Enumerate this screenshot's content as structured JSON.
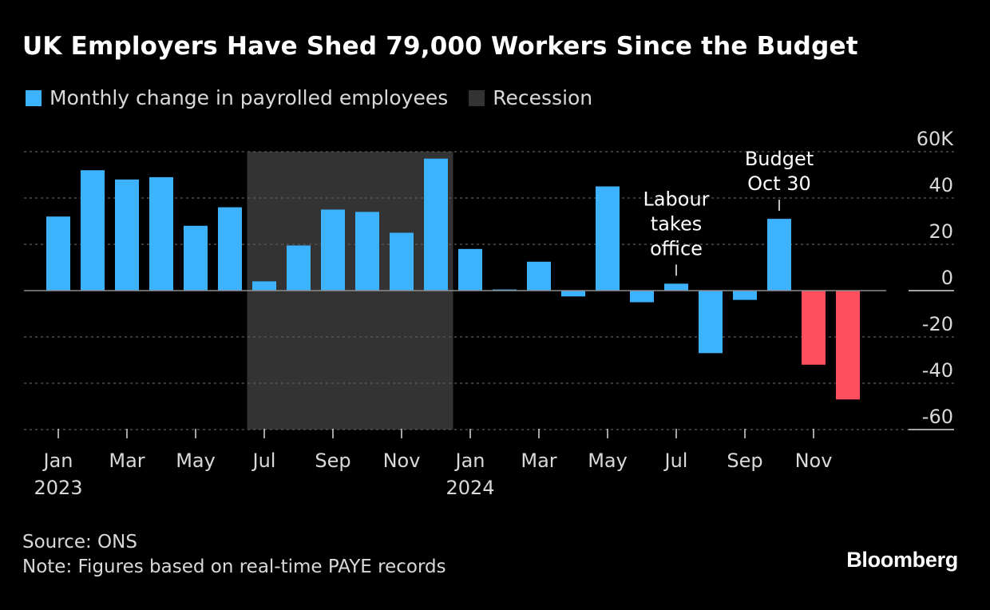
{
  "title": "UK Employers Have Shed 79,000 Workers Since the Budget",
  "legend": [
    {
      "label": "Monthly change in payrolled employees",
      "color": "#3db3ff"
    },
    {
      "label": "Recession",
      "color": "#333333"
    }
  ],
  "footer": {
    "source": "Source: ONS",
    "note": "Note: Figures based on real-time PAYE records"
  },
  "brand": "Bloomberg",
  "colors": {
    "positive": "#3db3ff",
    "highlight_negative": "#ff4f5e",
    "recession": "#333333",
    "grid": "#5a5a5a",
    "text": "#d9d9d9"
  },
  "chart_data": {
    "type": "bar",
    "title": "UK Employers Have Shed 79,000 Workers Since the Budget",
    "xlabel": "",
    "ylabel": "",
    "ylim": [
      -60,
      60
    ],
    "y_ticks": [
      60,
      40,
      20,
      0,
      -20,
      -40,
      -60
    ],
    "y_tick_labels": [
      "60K",
      "40",
      "20",
      "0",
      "-20",
      "-40",
      "-60"
    ],
    "grid": true,
    "categories": [
      "2023-01",
      "2023-02",
      "2023-03",
      "2023-04",
      "2023-05",
      "2023-06",
      "2023-07",
      "2023-08",
      "2023-09",
      "2023-10",
      "2023-11",
      "2023-12",
      "2024-01",
      "2024-02",
      "2024-03",
      "2024-04",
      "2024-05",
      "2024-06",
      "2024-07",
      "2024-08",
      "2024-09",
      "2024-10",
      "2024-11",
      "2024-12"
    ],
    "series": [
      {
        "name": "Monthly change in payrolled employees",
        "values": [
          32,
          52,
          48,
          49,
          28,
          36,
          4,
          19.5,
          35,
          34,
          25,
          57,
          18,
          0.5,
          12.5,
          -2.5,
          45,
          -5,
          3,
          -27,
          -4,
          31,
          -32,
          -47
        ],
        "highlight_negative_from": "2024-11"
      }
    ],
    "recession": {
      "start": "2023-07",
      "end": "2023-12",
      "label": "Recession"
    },
    "x_ticks": [
      {
        "month": "Jan",
        "year": "2023"
      },
      {
        "month": "Mar",
        "year": ""
      },
      {
        "month": "May",
        "year": ""
      },
      {
        "month": "Jul",
        "year": ""
      },
      {
        "month": "Sep",
        "year": ""
      },
      {
        "month": "Nov",
        "year": ""
      },
      {
        "month": "Jan",
        "year": "2024"
      },
      {
        "month": "Mar",
        "year": ""
      },
      {
        "month": "May",
        "year": ""
      },
      {
        "month": "Jul",
        "year": ""
      },
      {
        "month": "Sep",
        "year": ""
      },
      {
        "month": "Nov",
        "year": ""
      }
    ],
    "annotations": [
      {
        "category": "2024-07",
        "lines": [
          "Labour",
          "takes",
          "office"
        ]
      },
      {
        "category": "2024-10",
        "lines": [
          "Budget",
          "Oct 30"
        ]
      }
    ]
  }
}
